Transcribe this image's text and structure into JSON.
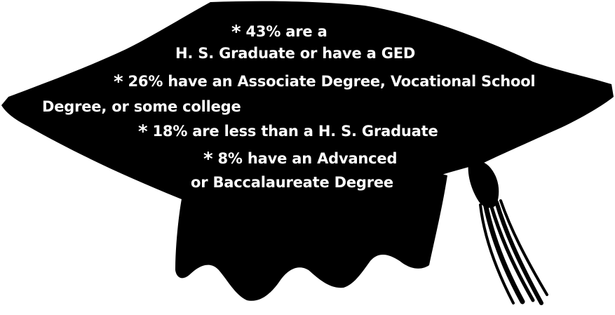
{
  "colors": {
    "cap": "#000000",
    "text": "#ffffff",
    "background": "#ffffff"
  },
  "graphic": {
    "icon": "graduation-cap-icon"
  },
  "lines": {
    "l1_star": "*",
    "l1": " 43% are a",
    "l2": "H. S. Graduate or have a GED",
    "l3_star": "*",
    "l3": " 26% have an Associate Degree, Vocational School",
    "l4": "Degree,  or some college",
    "l5_star": "*",
    "l5": " 18% are less than a  H. S. Graduate",
    "l6_star": "*",
    "l6": " 8% have an Advanced",
    "l7": "or  Baccalaureate Degree"
  }
}
